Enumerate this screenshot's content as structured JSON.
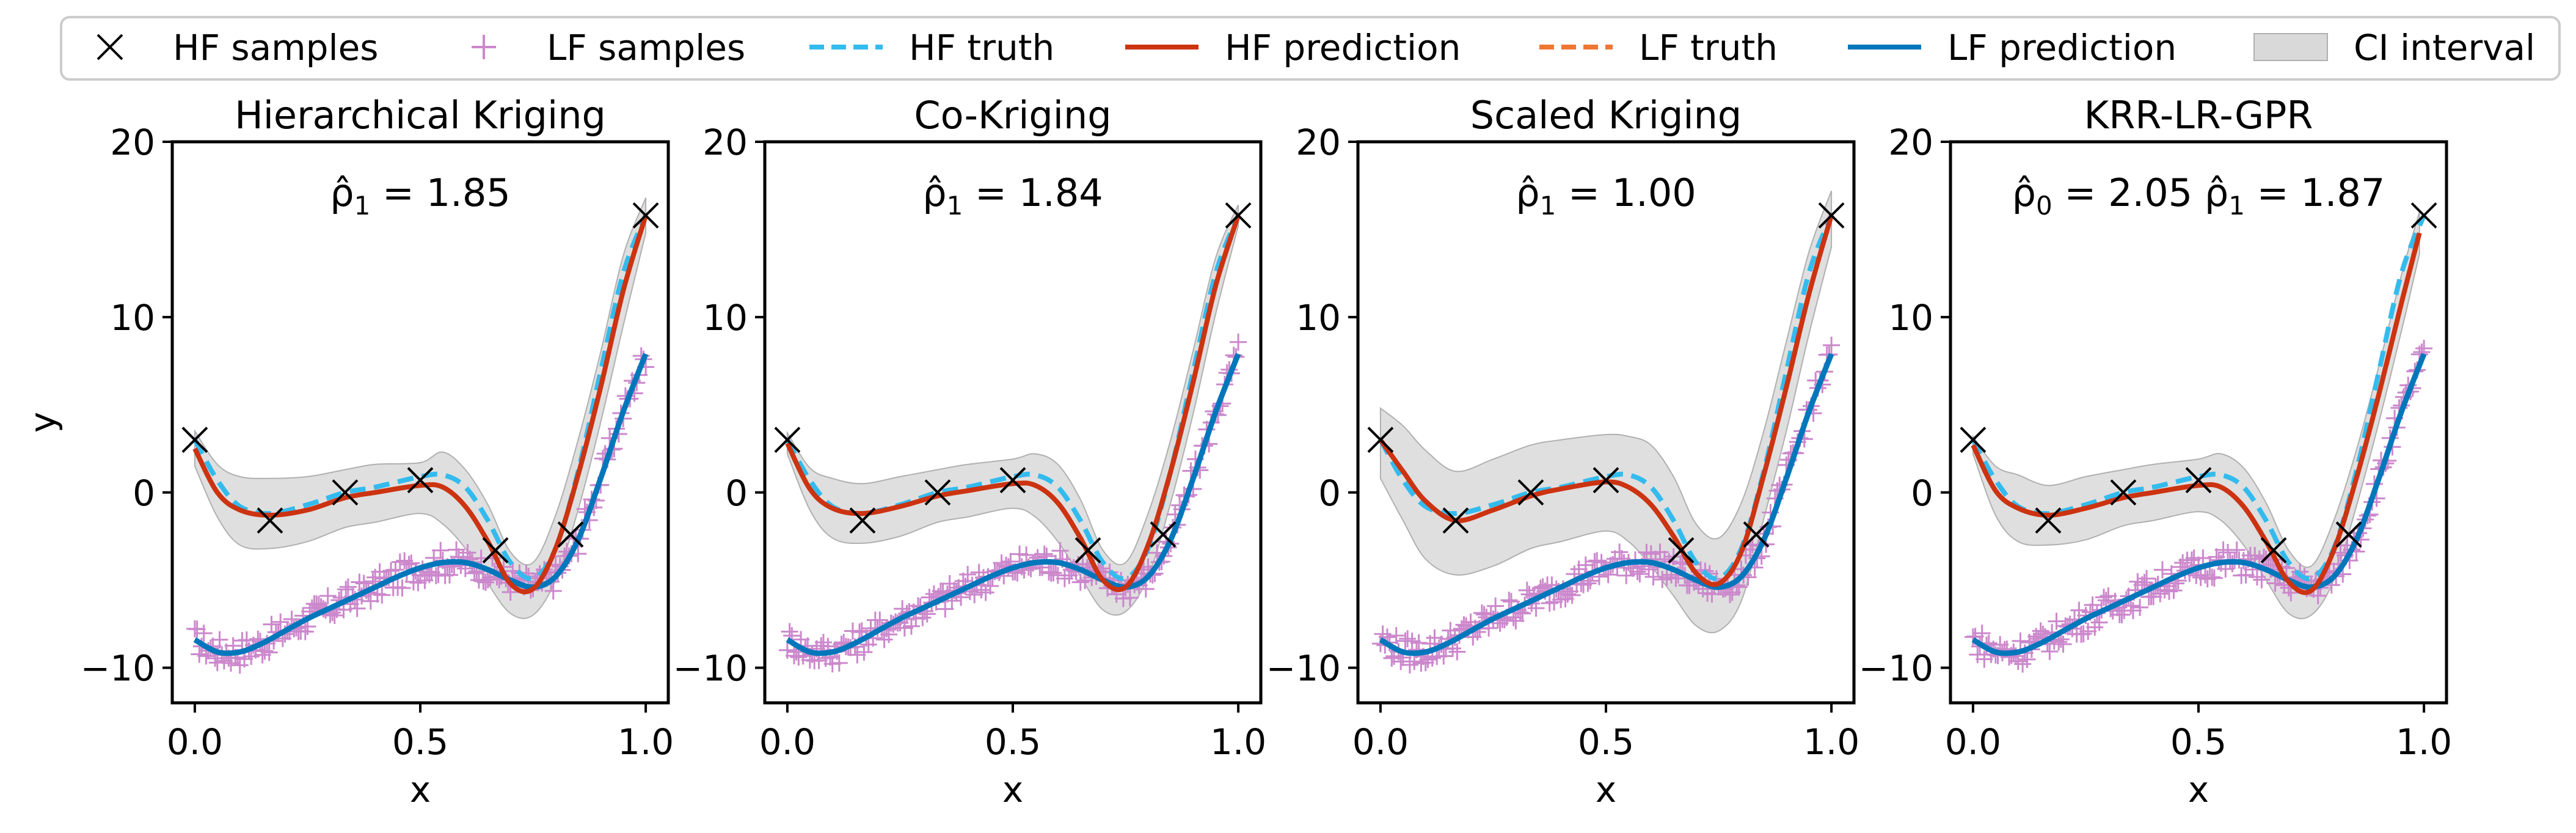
{
  "legend": {
    "placement": "top",
    "entries": [
      {
        "label": "HF samples",
        "marker": "x-marker",
        "color": "#000000"
      },
      {
        "label": "LF samples",
        "marker": "plus-marker",
        "color": "#cc88cc"
      },
      {
        "label": "HF truth",
        "marker": "dashed-line",
        "color": "#33bbee"
      },
      {
        "label": "HF prediction",
        "marker": "solid-line",
        "color": "#cc3311"
      },
      {
        "label": "LF truth",
        "marker": "dashed-line",
        "color": "#ee7733"
      },
      {
        "label": "LF prediction",
        "marker": "solid-line",
        "color": "#0077bb"
      },
      {
        "label": "CI interval",
        "marker": "patch",
        "color": "#d9d9d9"
      }
    ]
  },
  "colors": {
    "hf_samples": "#000000",
    "lf_samples": "#cc88cc",
    "hf_truth": "#33bbee",
    "hf_prediction": "#cc3311",
    "lf_truth": "#ee7733",
    "lf_prediction": "#0077bb",
    "ci": "#d9d9d9"
  },
  "chart_data": [
    {
      "type": "line",
      "title": "Hierarchical Kriging",
      "annotation_parts": [
        "ρ̂",
        "1",
        " = 1.85"
      ],
      "xlabel": "x",
      "ylabel": "y",
      "xlim": [
        -0.05,
        1.05
      ],
      "ylim": [
        -12,
        20
      ],
      "xticks": [
        0.0,
        0.5,
        1.0
      ],
      "xtick_labels": [
        "0.0",
        "0.5",
        "1.0"
      ],
      "yticks": [
        -10,
        0,
        10,
        20
      ],
      "ytick_labels": [
        "−10",
        "0",
        "10",
        "20"
      ],
      "hf_samples": {
        "x": [
          0.0,
          0.1667,
          0.3333,
          0.5,
          0.6667,
          0.8333,
          1.0
        ],
        "y": [
          3.0,
          -1.6,
          0.0,
          0.7,
          -3.3,
          -2.4,
          15.8
        ]
      },
      "hf_prediction": {
        "x": [
          0.0,
          0.05,
          0.1,
          0.1667,
          0.25,
          0.3333,
          0.4,
          0.5,
          0.55,
          0.6,
          0.65,
          0.7,
          0.75,
          0.8,
          0.85,
          0.9,
          0.95,
          1.0
        ],
        "y": [
          2.5,
          0.0,
          -1.0,
          -1.3,
          -1.0,
          -0.3,
          0.0,
          0.4,
          0.3,
          -0.8,
          -2.8,
          -5.2,
          -5.5,
          -3.2,
          1.0,
          6.0,
          11.5,
          15.8
        ]
      },
      "hf_prediction_lower": [
        1.5,
        -1.4,
        -3.0,
        -3.2,
        -2.8,
        -2.0,
        -1.7,
        -1.2,
        -1.8,
        -3.2,
        -5.2,
        -6.9,
        -7.0,
        -5.0,
        -1.0,
        4.0,
        9.5,
        14.8
      ],
      "hf_prediction_upper": [
        3.5,
        1.6,
        0.9,
        0.8,
        0.9,
        1.3,
        1.6,
        1.7,
        2.3,
        1.3,
        -0.7,
        -3.4,
        -4.0,
        -1.3,
        3.0,
        8.0,
        13.5,
        16.8
      ],
      "hf_truth": {
        "x": [
          0.0,
          0.05,
          0.1,
          0.1667,
          0.25,
          0.3333,
          0.4,
          0.5,
          0.55,
          0.6,
          0.65,
          0.7,
          0.75,
          0.8,
          0.85,
          0.9,
          0.95,
          1.0
        ],
        "y": [
          3.0,
          0.7,
          -0.8,
          -1.2,
          -0.7,
          0.0,
          0.3,
          0.9,
          1.0,
          0.3,
          -1.6,
          -4.0,
          -4.9,
          -3.2,
          1.2,
          6.9,
          12.5,
          15.8
        ]
      },
      "lf_prediction": {
        "x": [
          0.0,
          0.05,
          0.1,
          0.15,
          0.2,
          0.25,
          0.3,
          0.35,
          0.4,
          0.45,
          0.5,
          0.55,
          0.6,
          0.65,
          0.7,
          0.75,
          0.8,
          0.85,
          0.9,
          0.95,
          1.0
        ],
        "y": [
          -8.4,
          -9.1,
          -9.1,
          -8.6,
          -7.9,
          -7.2,
          -6.6,
          -6.0,
          -5.4,
          -4.8,
          -4.3,
          -4.0,
          -4.0,
          -4.4,
          -5.0,
          -5.4,
          -4.8,
          -2.7,
          0.8,
          4.6,
          7.9
        ]
      },
      "lf_truth": {
        "x": [
          0.0,
          0.05,
          0.1,
          0.15,
          0.2,
          0.25,
          0.3,
          0.35,
          0.4,
          0.45,
          0.5,
          0.55,
          0.6,
          0.65,
          0.7,
          0.75,
          0.8,
          0.85,
          0.9,
          0.95,
          1.0
        ],
        "y": [
          -8.4,
          -9.1,
          -9.1,
          -8.6,
          -7.9,
          -7.2,
          -6.6,
          -6.0,
          -5.4,
          -4.8,
          -4.3,
          -4.0,
          -4.0,
          -4.4,
          -5.0,
          -5.4,
          -4.8,
          -2.7,
          0.8,
          4.6,
          7.9
        ]
      }
    },
    {
      "type": "line",
      "title": "Co-Kriging",
      "annotation_parts": [
        "ρ̂",
        "1",
        " = 1.84"
      ],
      "xlabel": "x",
      "ylabel": "",
      "xlim": [
        -0.05,
        1.05
      ],
      "ylim": [
        -12,
        20
      ],
      "xticks": [
        0.0,
        0.5,
        1.0
      ],
      "xtick_labels": [
        "0.0",
        "0.5",
        "1.0"
      ],
      "yticks": [
        -10,
        0,
        10,
        20
      ],
      "ytick_labels": [
        "−10",
        "0",
        "10",
        "20"
      ],
      "hf_samples": {
        "x": [
          0.0,
          0.1667,
          0.3333,
          0.5,
          0.6667,
          0.8333,
          1.0
        ],
        "y": [
          3.0,
          -1.6,
          0.0,
          0.7,
          -3.3,
          -2.4,
          15.8
        ]
      },
      "hf_prediction": {
        "x": [
          0.0,
          0.05,
          0.1,
          0.1667,
          0.25,
          0.3333,
          0.4,
          0.5,
          0.55,
          0.6,
          0.65,
          0.7,
          0.75,
          0.8,
          0.85,
          0.9,
          0.95,
          1.0
        ],
        "y": [
          2.8,
          0.2,
          -0.9,
          -1.2,
          -0.8,
          -0.2,
          0.1,
          0.5,
          0.4,
          -0.6,
          -2.6,
          -5.0,
          -5.4,
          -3.0,
          1.2,
          6.3,
          11.8,
          15.8
        ]
      },
      "hf_prediction_lower": [
        2.2,
        -1.0,
        -2.6,
        -2.9,
        -2.5,
        -1.7,
        -1.4,
        -0.9,
        -1.4,
        -2.8,
        -4.8,
        -6.7,
        -6.8,
        -4.8,
        -0.6,
        4.5,
        10.2,
        15.2
      ],
      "hf_prediction_upper": [
        3.4,
        1.4,
        0.8,
        0.5,
        0.9,
        1.3,
        1.6,
        1.9,
        2.2,
        1.6,
        -0.4,
        -3.3,
        -4.0,
        -1.2,
        3.0,
        8.1,
        13.4,
        16.4
      ],
      "hf_truth": {
        "x": [
          0.0,
          0.05,
          0.1,
          0.1667,
          0.25,
          0.3333,
          0.4,
          0.5,
          0.55,
          0.6,
          0.65,
          0.7,
          0.75,
          0.8,
          0.85,
          0.9,
          0.95,
          1.0
        ],
        "y": [
          3.0,
          0.7,
          -0.8,
          -1.2,
          -0.7,
          0.0,
          0.3,
          0.9,
          1.0,
          0.3,
          -1.6,
          -4.0,
          -4.9,
          -3.2,
          1.2,
          6.9,
          12.5,
          15.8
        ]
      },
      "lf_prediction": {
        "x": [
          0.0,
          0.05,
          0.1,
          0.15,
          0.2,
          0.25,
          0.3,
          0.35,
          0.4,
          0.45,
          0.5,
          0.55,
          0.6,
          0.65,
          0.7,
          0.75,
          0.8,
          0.85,
          0.9,
          0.95,
          1.0
        ],
        "y": [
          -8.4,
          -9.1,
          -9.1,
          -8.6,
          -7.9,
          -7.2,
          -6.6,
          -6.0,
          -5.4,
          -4.8,
          -4.3,
          -4.0,
          -4.0,
          -4.4,
          -5.0,
          -5.4,
          -4.8,
          -2.7,
          0.8,
          4.6,
          7.9
        ]
      },
      "lf_truth": {
        "x": [
          0.0,
          0.05,
          0.1,
          0.15,
          0.2,
          0.25,
          0.3,
          0.35,
          0.4,
          0.45,
          0.5,
          0.55,
          0.6,
          0.65,
          0.7,
          0.75,
          0.8,
          0.85,
          0.9,
          0.95,
          1.0
        ],
        "y": [
          -8.4,
          -9.1,
          -9.1,
          -8.6,
          -7.9,
          -7.2,
          -6.6,
          -6.0,
          -5.4,
          -4.8,
          -4.3,
          -4.0,
          -4.0,
          -4.4,
          -5.0,
          -5.4,
          -4.8,
          -2.7,
          0.8,
          4.6,
          7.9
        ]
      }
    },
    {
      "type": "line",
      "title": "Scaled Kriging",
      "annotation_parts": [
        "ρ̂",
        "1",
        " = 1.00"
      ],
      "xlabel": "x",
      "ylabel": "",
      "xlim": [
        -0.05,
        1.05
      ],
      "ylim": [
        -12,
        20
      ],
      "xticks": [
        0.0,
        0.5,
        1.0
      ],
      "xtick_labels": [
        "0.0",
        "0.5",
        "1.0"
      ],
      "yticks": [
        -10,
        0,
        10,
        20
      ],
      "ytick_labels": [
        "−10",
        "0",
        "10",
        "20"
      ],
      "hf_samples": {
        "x": [
          0.0,
          0.1667,
          0.3333,
          0.5,
          0.6667,
          0.8333,
          1.0
        ],
        "y": [
          3.0,
          -1.6,
          0.0,
          0.7,
          -3.3,
          -2.4,
          15.8
        ]
      },
      "hf_prediction": {
        "x": [
          0.0,
          0.05,
          0.1,
          0.1667,
          0.25,
          0.3333,
          0.4,
          0.5,
          0.55,
          0.6,
          0.65,
          0.7,
          0.75,
          0.8,
          0.85,
          0.9,
          0.95,
          1.0
        ],
        "y": [
          3.0,
          1.2,
          -0.5,
          -1.6,
          -1.0,
          -0.2,
          0.2,
          0.6,
          0.3,
          -0.7,
          -2.5,
          -4.6,
          -5.2,
          -3.4,
          1.0,
          6.0,
          11.3,
          15.8
        ]
      },
      "hf_prediction_lower": [
        0.8,
        -1.6,
        -3.8,
        -4.7,
        -4.2,
        -3.2,
        -2.8,
        -2.2,
        -2.8,
        -4.2,
        -5.9,
        -7.6,
        -7.9,
        -6.2,
        -1.5,
        3.5,
        9.0,
        14.0
      ],
      "hf_prediction_upper": [
        4.8,
        3.8,
        2.4,
        1.2,
        1.9,
        2.7,
        3.0,
        3.3,
        3.2,
        2.7,
        0.9,
        -1.8,
        -2.6,
        -0.6,
        3.5,
        8.6,
        13.7,
        17.2
      ],
      "hf_truth": {
        "x": [
          0.0,
          0.05,
          0.1,
          0.1667,
          0.25,
          0.3333,
          0.4,
          0.5,
          0.55,
          0.6,
          0.65,
          0.7,
          0.75,
          0.8,
          0.85,
          0.9,
          0.95,
          1.0
        ],
        "y": [
          3.0,
          0.7,
          -0.8,
          -1.2,
          -0.7,
          0.0,
          0.3,
          0.9,
          1.0,
          0.3,
          -1.6,
          -4.0,
          -4.9,
          -3.2,
          1.2,
          6.9,
          12.5,
          15.8
        ]
      },
      "lf_prediction": {
        "x": [
          0.0,
          0.05,
          0.1,
          0.15,
          0.2,
          0.25,
          0.3,
          0.35,
          0.4,
          0.45,
          0.5,
          0.55,
          0.6,
          0.65,
          0.7,
          0.75,
          0.8,
          0.85,
          0.9,
          0.95,
          1.0
        ],
        "y": [
          -8.4,
          -9.1,
          -9.1,
          -8.6,
          -7.9,
          -7.2,
          -6.6,
          -6.0,
          -5.4,
          -4.8,
          -4.3,
          -4.0,
          -4.0,
          -4.4,
          -5.0,
          -5.4,
          -4.8,
          -2.7,
          0.8,
          4.6,
          7.9
        ]
      },
      "lf_truth": {
        "x": [
          0.0,
          0.05,
          0.1,
          0.15,
          0.2,
          0.25,
          0.3,
          0.35,
          0.4,
          0.45,
          0.5,
          0.55,
          0.6,
          0.65,
          0.7,
          0.75,
          0.8,
          0.85,
          0.9,
          0.95,
          1.0
        ],
        "y": [
          -8.4,
          -9.1,
          -9.1,
          -8.6,
          -7.9,
          -7.2,
          -6.6,
          -6.0,
          -5.4,
          -4.8,
          -4.3,
          -4.0,
          -4.0,
          -4.4,
          -5.0,
          -5.4,
          -4.8,
          -2.7,
          0.8,
          4.6,
          7.9
        ]
      }
    },
    {
      "type": "line",
      "title": "KRR-LR-GPR",
      "annotation_parts": [
        "ρ̂",
        "0",
        " = 2.05  ",
        "ρ̂",
        "1",
        " = 1.87"
      ],
      "xlabel": "x",
      "ylabel": "",
      "xlim": [
        -0.05,
        1.05
      ],
      "ylim": [
        -12,
        20
      ],
      "xticks": [
        0.0,
        0.5,
        1.0
      ],
      "xtick_labels": [
        "0.0",
        "0.5",
        "1.0"
      ],
      "yticks": [
        -10,
        0,
        10,
        20
      ],
      "ytick_labels": [
        "−10",
        "0",
        "10",
        "20"
      ],
      "hf_samples": {
        "x": [
          0.0,
          0.1667,
          0.3333,
          0.5,
          0.6667,
          0.8333,
          1.0
        ],
        "y": [
          3.0,
          -1.6,
          0.0,
          0.7,
          -3.3,
          -2.4,
          15.8
        ]
      },
      "hf_prediction": {
        "x": [
          0.0,
          0.05,
          0.1,
          0.1667,
          0.25,
          0.3333,
          0.4,
          0.5,
          0.55,
          0.6,
          0.65,
          0.7,
          0.75,
          0.8,
          0.85,
          0.9,
          0.95,
          0.99
        ],
        "y": [
          2.7,
          0.1,
          -0.9,
          -1.3,
          -0.9,
          -0.3,
          0.0,
          0.4,
          0.3,
          -0.8,
          -2.8,
          -5.1,
          -5.6,
          -3.3,
          0.8,
          5.6,
          10.8,
          14.8
        ]
      },
      "hf_prediction_lower": [
        2.2,
        -1.3,
        -2.8,
        -3.0,
        -2.7,
        -1.9,
        -1.6,
        -1.1,
        -1.6,
        -3.0,
        -5.0,
        -6.9,
        -7.0,
        -5.0,
        -0.8,
        4.0,
        9.2,
        13.6
      ],
      "hf_prediction_upper": [
        3.2,
        1.5,
        1.0,
        0.4,
        0.9,
        1.3,
        1.6,
        1.9,
        2.2,
        1.4,
        -0.6,
        -3.3,
        -4.2,
        -1.6,
        2.4,
        7.2,
        12.4,
        16.0
      ],
      "hf_truth": {
        "x": [
          0.0,
          0.05,
          0.1,
          0.1667,
          0.25,
          0.3333,
          0.4,
          0.5,
          0.55,
          0.6,
          0.65,
          0.7,
          0.75,
          0.8,
          0.85,
          0.9,
          0.95,
          1.0
        ],
        "y": [
          3.0,
          0.7,
          -0.8,
          -1.2,
          -0.7,
          0.0,
          0.3,
          0.9,
          1.0,
          0.3,
          -1.6,
          -4.0,
          -4.9,
          -3.2,
          1.2,
          6.9,
          12.5,
          15.8
        ]
      },
      "lf_prediction": {
        "x": [
          0.0,
          0.05,
          0.1,
          0.15,
          0.2,
          0.25,
          0.3,
          0.35,
          0.4,
          0.45,
          0.5,
          0.55,
          0.6,
          0.65,
          0.7,
          0.75,
          0.8,
          0.85,
          0.9,
          0.95,
          1.0
        ],
        "y": [
          -8.4,
          -9.1,
          -9.1,
          -8.6,
          -7.9,
          -7.2,
          -6.6,
          -6.0,
          -5.4,
          -4.8,
          -4.3,
          -4.0,
          -4.0,
          -4.4,
          -5.0,
          -5.4,
          -4.8,
          -2.7,
          0.8,
          4.6,
          7.9
        ]
      },
      "lf_truth": {
        "x": [
          0.0,
          0.05,
          0.1,
          0.15,
          0.2,
          0.25,
          0.3,
          0.35,
          0.4,
          0.45,
          0.5,
          0.55,
          0.6,
          0.65,
          0.7,
          0.75,
          0.8,
          0.85,
          0.9,
          0.95,
          1.0
        ],
        "y": [
          -8.4,
          -9.1,
          -9.1,
          -8.6,
          -7.9,
          -7.2,
          -6.6,
          -6.0,
          -5.4,
          -4.8,
          -4.3,
          -4.0,
          -4.0,
          -4.4,
          -5.0,
          -5.4,
          -4.8,
          -2.7,
          0.8,
          4.6,
          7.9
        ]
      }
    }
  ]
}
